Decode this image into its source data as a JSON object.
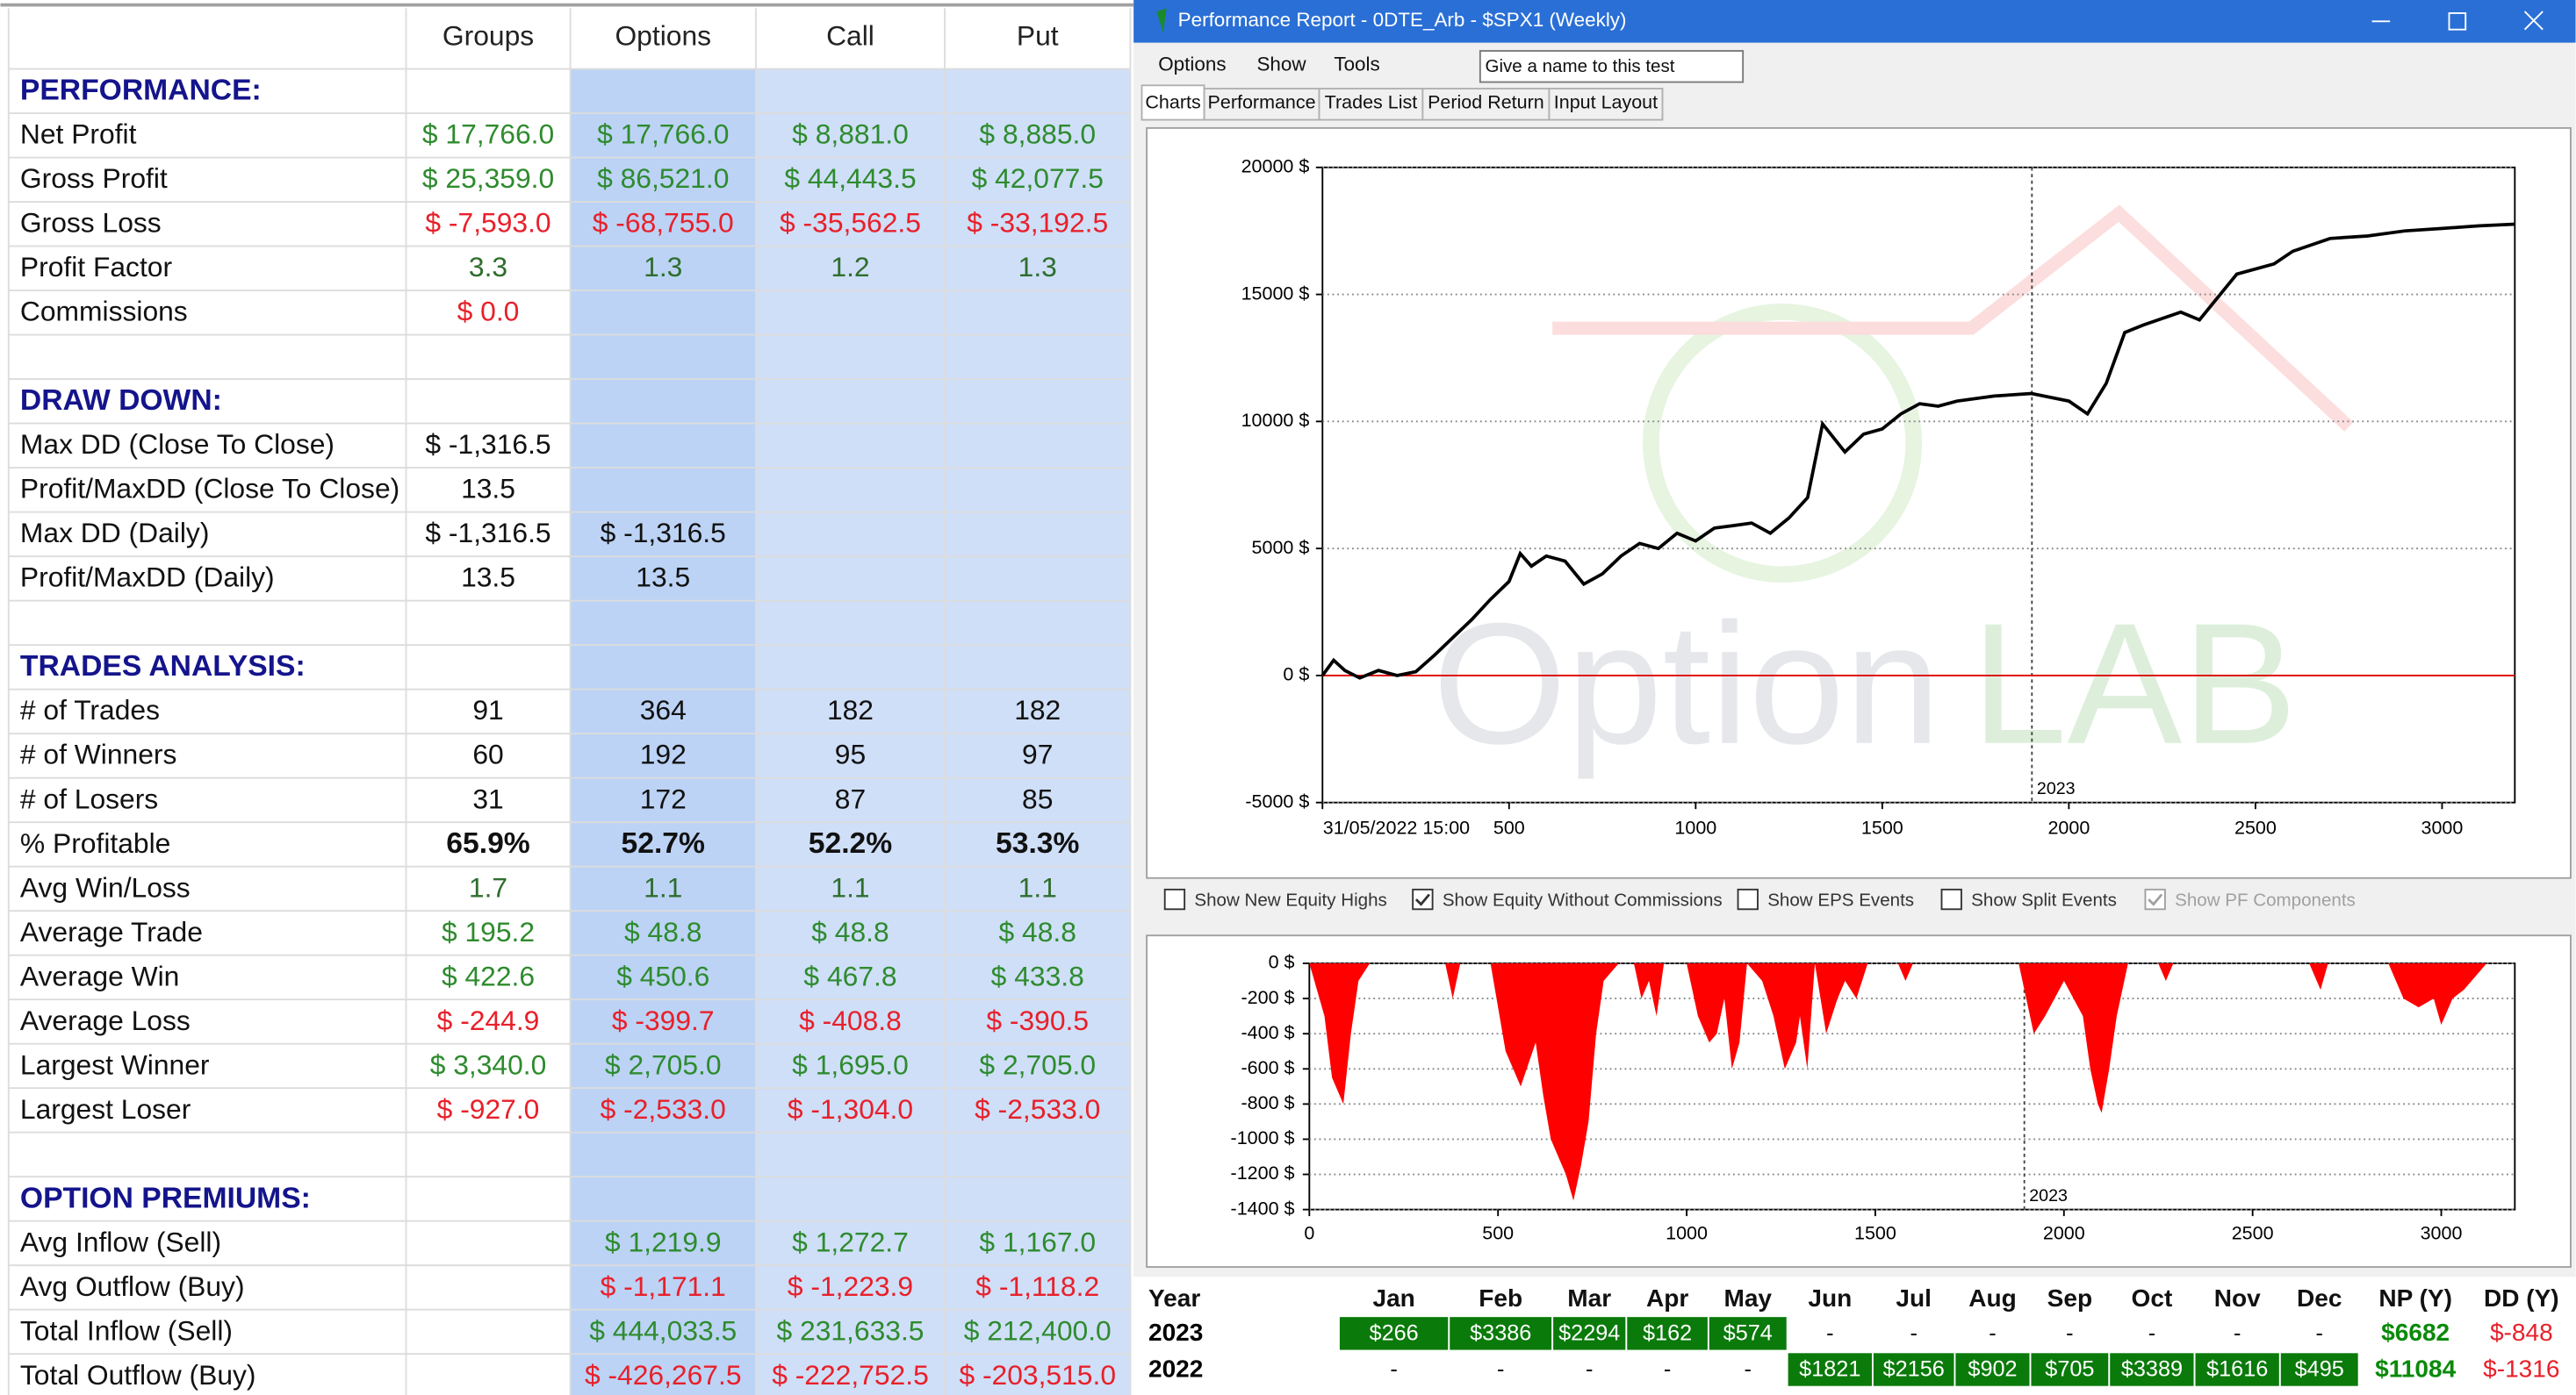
{
  "table": {
    "columns": [
      "Groups",
      "Options",
      "Call",
      "Put"
    ],
    "column_fills": [
      "#ffffff",
      "#bcd3f5",
      "#cfdff8",
      "#cfdff8"
    ],
    "section_color": "#14148c",
    "sections": [
      {
        "title": "PERFORMANCE:",
        "rows": [
          {
            "label": "Net Profit",
            "cells": [
              "$ 17,766.0",
              "$ 17,766.0",
              "$ 8,881.0",
              "$ 8,885.0"
            ],
            "color": "#2e8b2e"
          },
          {
            "label": "Gross Profit",
            "cells": [
              "$ 25,359.0",
              "$ 86,521.0",
              "$ 44,443.5",
              "$ 42,077.5"
            ],
            "color": "#2e8b2e"
          },
          {
            "label": "Gross Loss",
            "cells": [
              "$ -7,593.0",
              "$ -68,755.0",
              "$ -35,562.5",
              "$ -33,192.5"
            ],
            "color": "#e8202a"
          },
          {
            "label": "Profit Factor",
            "cells": [
              "3.3",
              "1.3",
              "1.2",
              "1.3"
            ],
            "color": "#2e6e2e"
          },
          {
            "label": "Commissions",
            "cells": [
              "$ 0.0",
              null,
              null,
              null
            ],
            "color": "#e8202a"
          }
        ]
      },
      {
        "title": "DRAW DOWN:",
        "rows": [
          {
            "label": "Max DD (Close To Close)",
            "cells": [
              "$ -1,316.5",
              null,
              null,
              null
            ],
            "color": "#111111"
          },
          {
            "label": "Profit/MaxDD (Close To Close)",
            "cells": [
              "13.5",
              null,
              null,
              null
            ],
            "color": "#111111"
          },
          {
            "label": "Max DD (Daily)",
            "cells": [
              "$ -1,316.5",
              "$ -1,316.5",
              null,
              null
            ],
            "color": "#111111"
          },
          {
            "label": "Profit/MaxDD (Daily)",
            "cells": [
              "13.5",
              "13.5",
              null,
              null
            ],
            "color": "#111111"
          }
        ]
      },
      {
        "title": "TRADES ANALYSIS:",
        "rows": [
          {
            "label": "# of Trades",
            "cells": [
              "91",
              "364",
              "182",
              "182"
            ],
            "color": "#111111"
          },
          {
            "label": "# of Winners",
            "cells": [
              "60",
              "192",
              "95",
              "97"
            ],
            "color": "#111111"
          },
          {
            "label": "# of Losers",
            "cells": [
              "31",
              "172",
              "87",
              "85"
            ],
            "color": "#111111"
          },
          {
            "label": "% Profitable",
            "cells": [
              "65.9%",
              "52.7%",
              "52.2%",
              "53.3%"
            ],
            "color": "#111111",
            "bold": true
          },
          {
            "label": "Avg Win/Loss",
            "cells": [
              "1.7",
              "1.1",
              "1.1",
              "1.1"
            ],
            "color": "#2e6e2e"
          },
          {
            "label": "Average Trade",
            "cells": [
              "$ 195.2",
              "$ 48.8",
              "$ 48.8",
              "$ 48.8"
            ],
            "color": "#2e8b2e"
          },
          {
            "label": "Average Win",
            "cells": [
              "$ 422.6",
              "$ 450.6",
              "$ 467.8",
              "$ 433.8"
            ],
            "color": "#2e8b2e"
          },
          {
            "label": "Average Loss",
            "cells": [
              "$ -244.9",
              "$ -399.7",
              "$ -408.8",
              "$ -390.5"
            ],
            "color": "#e8202a"
          },
          {
            "label": "Largest Winner",
            "cells": [
              "$ 3,340.0",
              "$ 2,705.0",
              "$ 1,695.0",
              "$ 2,705.0"
            ],
            "color": "#2e8b2e"
          },
          {
            "label": "Largest Loser",
            "cells": [
              "$ -927.0",
              "$ -2,533.0",
              "$ -1,304.0",
              "$ -2,533.0"
            ],
            "color": "#e8202a"
          }
        ]
      },
      {
        "title": "OPTION PREMIUMS:",
        "rows": [
          {
            "label": "Avg Inflow (Sell)",
            "cells": [
              null,
              "$ 1,219.9",
              "$ 1,272.7",
              "$ 1,167.0"
            ],
            "color": "#2e8b2e"
          },
          {
            "label": "Avg Outflow (Buy)",
            "cells": [
              null,
              "$ -1,171.1",
              "$ -1,223.9",
              "$ -1,118.2"
            ],
            "color": "#e8202a"
          },
          {
            "label": "Total Inflow (Sell)",
            "cells": [
              null,
              "$ 444,033.5",
              "$ 231,633.5",
              "$ 212,400.0"
            ],
            "color": "#2e8b2e"
          },
          {
            "label": "Total Outflow (Buy)",
            "cells": [
              null,
              "$ -426,267.5",
              "$ -222,752.5",
              "$ -203,515.0"
            ],
            "color": "#e8202a"
          }
        ]
      }
    ]
  },
  "window": {
    "title": "Performance Report - 0DTE_Arb - $SPX1 (Weekly)",
    "menu": [
      "Options",
      "Show",
      "Tools"
    ],
    "name_box": "Give a name to this test",
    "tabs": [
      "Charts",
      "Performance",
      "Trades List",
      "Period Return",
      "Input Layout"
    ],
    "active_tab": 0
  },
  "equity_chart": {
    "type": "line",
    "color": "#000000",
    "zero_line_color": "#e00000",
    "x": [
      0,
      30,
      60,
      100,
      150,
      200,
      250,
      300,
      350,
      400,
      450,
      500,
      530,
      560,
      600,
      650,
      700,
      750,
      800,
      850,
      900,
      950,
      1000,
      1050,
      1100,
      1150,
      1200,
      1250,
      1300,
      1340,
      1400,
      1450,
      1500,
      1550,
      1600,
      1650,
      1700,
      1800,
      1900,
      2000,
      2050,
      2100,
      2150,
      2200,
      2300,
      2350,
      2450,
      2550,
      2600,
      2700,
      2800,
      2900,
      3000,
      3100,
      3195
    ],
    "values": [
      0,
      600,
      200,
      -100,
      200,
      0,
      150,
      800,
      1500,
      2200,
      3000,
      3700,
      4800,
      4300,
      4700,
      4500,
      3600,
      4000,
      4700,
      5200,
      5000,
      5600,
      5300,
      5800,
      5900,
      6000,
      5600,
      6200,
      7000,
      9900,
      8800,
      9500,
      9700,
      10300,
      10700,
      10600,
      10800,
      11000,
      11100,
      10800,
      10300,
      11500,
      13500,
      13800,
      14300,
      14000,
      15800,
      16200,
      16700,
      17200,
      17300,
      17500,
      17600,
      17700,
      17766
    ],
    "xlim": [
      0,
      3195
    ],
    "ylim": [
      -5000,
      20000
    ],
    "xticks": [
      {
        "value": 0,
        "label": "31/05/2022 15:00"
      },
      500,
      1000,
      1500,
      2000,
      2500,
      3000
    ],
    "yticks": [
      {
        "value": 20000,
        "label": "20000 $"
      },
      {
        "value": 15000,
        "label": "15000 $"
      },
      {
        "value": 10000,
        "label": "10000 $"
      },
      {
        "value": 5000,
        "label": "5000 $"
      },
      {
        "value": 0,
        "label": "0 $"
      },
      {
        "value": -5000,
        "label": "-5000 $"
      }
    ],
    "marker": {
      "value": 1901,
      "label": "2023"
    },
    "grid": true,
    "watermark": [
      "Option",
      "LAB"
    ]
  },
  "checkboxes": [
    {
      "label": "Show New Equity Highs",
      "checked": false,
      "enabled": true
    },
    {
      "label": "Show Equity Without Commissions",
      "checked": true,
      "enabled": true
    },
    {
      "label": "Show EPS Events",
      "checked": false,
      "enabled": true
    },
    {
      "label": "Show Split Events",
      "checked": false,
      "enabled": true
    },
    {
      "label": "Show PF Components",
      "checked": true,
      "enabled": false
    }
  ],
  "drawdown_chart": {
    "type": "area",
    "color": "#ff0000",
    "x": [
      0,
      40,
      60,
      90,
      110,
      130,
      160,
      360,
      380,
      400,
      480,
      520,
      560,
      600,
      620,
      640,
      680,
      700,
      720,
      740,
      760,
      780,
      820,
      860,
      880,
      900,
      920,
      940,
      1000,
      1030,
      1060,
      1080,
      1100,
      1120,
      1140,
      1160,
      1200,
      1230,
      1260,
      1290,
      1300,
      1320,
      1340,
      1370,
      1400,
      1420,
      1450,
      1480,
      1560,
      1580,
      1600,
      1880,
      1900,
      1920,
      1950,
      2000,
      2050,
      2070,
      2090,
      2100,
      2120,
      2140,
      2170,
      2250,
      2270,
      2290,
      2650,
      2680,
      2700,
      2860,
      2880,
      2900,
      2940,
      2980,
      3000,
      3030,
      3060,
      3100,
      3120,
      3195
    ],
    "values": [
      0,
      -300,
      -650,
      -800,
      -400,
      -100,
      0,
      0,
      -200,
      0,
      0,
      -500,
      -700,
      -450,
      -750,
      -1000,
      -1200,
      -1350,
      -1150,
      -900,
      -400,
      -100,
      0,
      0,
      -200,
      -100,
      -300,
      0,
      0,
      -300,
      -450,
      -400,
      -200,
      -600,
      -450,
      0,
      -100,
      -300,
      -600,
      -450,
      -300,
      -600,
      0,
      -400,
      -200,
      -100,
      -200,
      0,
      0,
      -100,
      0,
      0,
      -200,
      -400,
      -300,
      -100,
      -300,
      -600,
      -800,
      -850,
      -600,
      -300,
      0,
      0,
      -100,
      0,
      0,
      -150,
      0,
      0,
      -100,
      -200,
      -250,
      -200,
      -350,
      -200,
      -150,
      -50,
      0,
      0
    ],
    "xlim": [
      0,
      3195
    ],
    "ylim": [
      -1400,
      0
    ],
    "xticks": [
      0,
      500,
      1000,
      1500,
      2000,
      2500,
      3000
    ],
    "yticks": [
      {
        "value": 0,
        "label": "0 $"
      },
      {
        "value": -200,
        "label": "-200 $"
      },
      {
        "value": -400,
        "label": "-400 $"
      },
      {
        "value": -600,
        "label": "-600 $"
      },
      {
        "value": -800,
        "label": "-800 $"
      },
      {
        "value": -1000,
        "label": "-1000 $"
      },
      {
        "value": -1200,
        "label": "-1200 $"
      },
      {
        "value": -1400,
        "label": "-1400 $"
      }
    ],
    "marker": {
      "value": 1895,
      "label": "2023"
    },
    "grid": true
  },
  "monthly": {
    "header": [
      "Year",
      "Jan",
      "Feb",
      "Mar",
      "Apr",
      "May",
      "Jun",
      "Jul",
      "Aug",
      "Sep",
      "Oct",
      "Nov",
      "Dec",
      "NP (Y)",
      "DD (Y)"
    ],
    "rows": [
      {
        "cells": [
          "2023",
          "$266",
          "$3386",
          "$2294",
          "$162",
          "$574",
          "-",
          "-",
          "-",
          "-",
          "-",
          "-",
          "-",
          "$6682",
          "$-848"
        ],
        "fills": [
          null,
          "#0a7a0a",
          "#0a7a0a",
          "#0a7a0a",
          "#0a7a0a",
          "#0a7a0a",
          null,
          null,
          null,
          null,
          null,
          null,
          null,
          null,
          null
        ],
        "colors": [
          "#000000",
          "#ffffff",
          "#ffffff",
          "#ffffff",
          "#ffffff",
          "#ffffff",
          "#000000",
          "#000000",
          "#000000",
          "#000000",
          "#000000",
          "#000000",
          "#000000",
          "#0a8a0a",
          "#e8202a"
        ]
      },
      {
        "cells": [
          "2022",
          "-",
          "-",
          "-",
          "-",
          "-",
          "$1821",
          "$2156",
          "$902",
          "$705",
          "$3389",
          "$1616",
          "$495",
          "$11084",
          "$-1316"
        ],
        "fills": [
          null,
          null,
          null,
          null,
          null,
          null,
          "#0a7a0a",
          "#0a7a0a",
          "#0a7a0a",
          "#0a7a0a",
          "#0a7a0a",
          "#0a7a0a",
          "#0a7a0a",
          null,
          null
        ],
        "colors": [
          "#000000",
          "#000000",
          "#000000",
          "#000000",
          "#000000",
          "#000000",
          "#ffffff",
          "#ffffff",
          "#ffffff",
          "#ffffff",
          "#ffffff",
          "#ffffff",
          "#ffffff",
          "#0a8a0a",
          "#e8202a"
        ]
      }
    ]
  }
}
